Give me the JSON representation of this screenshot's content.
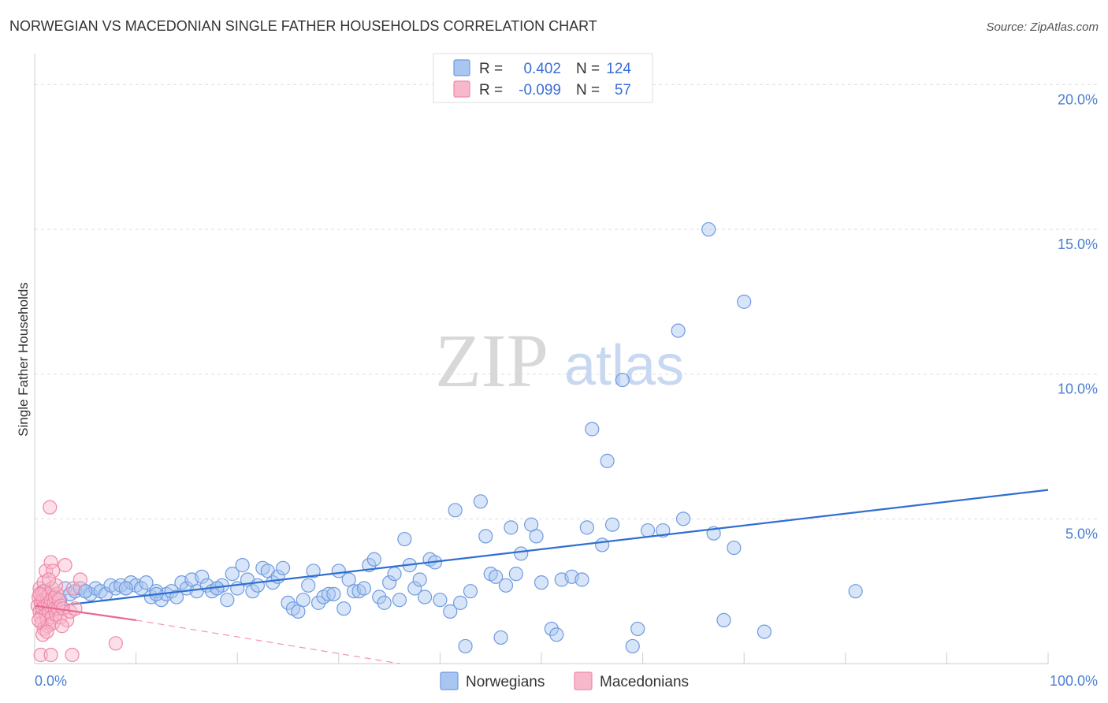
{
  "header": {
    "title": "NORWEGIAN VS MACEDONIAN SINGLE FATHER HOUSEHOLDS CORRELATION CHART",
    "source": "Source: ZipAtlas.com"
  },
  "watermark": {
    "zip": "ZIP",
    "atlas": "atlas"
  },
  "colors": {
    "blue_fill": "#a8c6f0",
    "blue_stroke": "#6f9be0",
    "blue_line": "#2f6fd0",
    "pink_fill": "#f8b8cc",
    "pink_stroke": "#ee88a8",
    "pink_line": "#e86890",
    "grid": "#dddddd",
    "tick_text": "#4a7fd0"
  },
  "legend": {
    "rows": [
      {
        "r_label": "R =",
        "r_value": "0.402",
        "n_label": "N =",
        "n_value": "124",
        "series": "blue"
      },
      {
        "r_label": "R =",
        "r_value": "-0.099",
        "n_label": "N =",
        "n_value": "57",
        "series": "pink"
      }
    ]
  },
  "bottom_legend": {
    "items": [
      {
        "label": "Norwegians",
        "series": "blue"
      },
      {
        "label": "Macedonians",
        "series": "pink"
      }
    ]
  },
  "chart_data": {
    "type": "scatter",
    "title": "NORWEGIAN VS MACEDONIAN SINGLE FATHER HOUSEHOLDS CORRELATION CHART",
    "xlabel": "",
    "ylabel": "Single Father Households",
    "xlim": [
      0,
      100
    ],
    "ylim": [
      0,
      20.8
    ],
    "x_ticks": [
      {
        "value": 0,
        "label": "0.0%"
      },
      {
        "value": 100,
        "label": "100.0%"
      }
    ],
    "x_minor_ticks": [
      10,
      20,
      30,
      40,
      50,
      60,
      70,
      80,
      90,
      100
    ],
    "y_ticks": [
      {
        "value": 5,
        "label": "5.0%"
      },
      {
        "value": 10,
        "label": "10.0%"
      },
      {
        "value": 15,
        "label": "15.0%"
      },
      {
        "value": 20,
        "label": "20.0%"
      }
    ],
    "grid": true,
    "series": [
      {
        "name": "Norwegians",
        "color": "blue",
        "trend": {
          "x": [
            0,
            100
          ],
          "y": [
            1.9,
            6.0
          ],
          "style": "solid"
        },
        "points": [
          [
            0.8,
            2.5
          ],
          [
            1.5,
            2.4
          ],
          [
            2.0,
            2.3
          ],
          [
            2.5,
            2.2
          ],
          [
            3.0,
            2.6
          ],
          [
            3.5,
            2.4
          ],
          [
            4.0,
            2.5
          ],
          [
            4.5,
            2.6
          ],
          [
            5.0,
            2.5
          ],
          [
            5.5,
            2.4
          ],
          [
            6.0,
            2.6
          ],
          [
            6.5,
            2.5
          ],
          [
            7.0,
            2.4
          ],
          [
            7.5,
            2.7
          ],
          [
            8.0,
            2.6
          ],
          [
            8.5,
            2.7
          ],
          [
            9.0,
            2.6
          ],
          [
            9.5,
            2.8
          ],
          [
            10.0,
            2.7
          ],
          [
            10.5,
            2.6
          ],
          [
            11.0,
            2.8
          ],
          [
            11.5,
            2.3
          ],
          [
            12.0,
            2.5
          ],
          [
            12.5,
            2.2
          ],
          [
            13.0,
            2.4
          ],
          [
            13.5,
            2.5
          ],
          [
            14.0,
            2.3
          ],
          [
            14.5,
            2.8
          ],
          [
            15.0,
            2.6
          ],
          [
            15.5,
            2.9
          ],
          [
            16.0,
            2.5
          ],
          [
            16.5,
            3.0
          ],
          [
            17.0,
            2.7
          ],
          [
            17.5,
            2.5
          ],
          [
            18.0,
            2.6
          ],
          [
            18.5,
            2.7
          ],
          [
            19.0,
            2.2
          ],
          [
            19.5,
            3.1
          ],
          [
            20.0,
            2.6
          ],
          [
            20.5,
            3.4
          ],
          [
            21.0,
            2.9
          ],
          [
            21.5,
            2.5
          ],
          [
            22.0,
            2.7
          ],
          [
            22.5,
            3.3
          ],
          [
            23.0,
            3.2
          ],
          [
            23.5,
            2.8
          ],
          [
            24.0,
            3.0
          ],
          [
            24.5,
            3.3
          ],
          [
            25.0,
            2.1
          ],
          [
            25.5,
            1.9
          ],
          [
            26.0,
            1.8
          ],
          [
            26.5,
            2.2
          ],
          [
            27.0,
            2.7
          ],
          [
            27.5,
            3.2
          ],
          [
            28.0,
            2.1
          ],
          [
            28.5,
            2.3
          ],
          [
            29.0,
            2.4
          ],
          [
            29.5,
            2.4
          ],
          [
            30.0,
            3.2
          ],
          [
            30.5,
            1.9
          ],
          [
            31.0,
            2.9
          ],
          [
            31.5,
            2.5
          ],
          [
            32.0,
            2.5
          ],
          [
            32.5,
            2.6
          ],
          [
            33.0,
            3.4
          ],
          [
            33.5,
            3.6
          ],
          [
            34.0,
            2.3
          ],
          [
            34.5,
            2.1
          ],
          [
            35.0,
            2.8
          ],
          [
            35.5,
            3.1
          ],
          [
            36.0,
            2.2
          ],
          [
            36.5,
            4.3
          ],
          [
            37.0,
            3.4
          ],
          [
            37.5,
            2.6
          ],
          [
            38.0,
            2.9
          ],
          [
            38.5,
            2.3
          ],
          [
            39.0,
            3.6
          ],
          [
            39.5,
            3.5
          ],
          [
            40.0,
            2.2
          ],
          [
            41.0,
            1.8
          ],
          [
            41.5,
            5.3
          ],
          [
            42.0,
            2.1
          ],
          [
            42.5,
            0.6
          ],
          [
            43.0,
            2.5
          ],
          [
            44.0,
            5.6
          ],
          [
            44.5,
            4.4
          ],
          [
            45.0,
            3.1
          ],
          [
            45.5,
            3.0
          ],
          [
            46.0,
            0.9
          ],
          [
            46.5,
            2.7
          ],
          [
            47.0,
            4.7
          ],
          [
            47.5,
            3.1
          ],
          [
            48.0,
            3.8
          ],
          [
            49.0,
            4.8
          ],
          [
            49.5,
            4.4
          ],
          [
            50.0,
            2.8
          ],
          [
            51.0,
            1.2
          ],
          [
            51.5,
            1.0
          ],
          [
            52.0,
            2.9
          ],
          [
            53.0,
            3.0
          ],
          [
            54.0,
            2.9
          ],
          [
            54.5,
            4.7
          ],
          [
            55.0,
            8.1
          ],
          [
            56.0,
            4.1
          ],
          [
            56.5,
            7.0
          ],
          [
            57.0,
            4.8
          ],
          [
            58.0,
            9.8
          ],
          [
            59.0,
            0.6
          ],
          [
            59.5,
            1.2
          ],
          [
            60.5,
            4.6
          ],
          [
            62.0,
            4.6
          ],
          [
            63.5,
            11.5
          ],
          [
            64.0,
            5.0
          ],
          [
            66.5,
            15.0
          ],
          [
            67.0,
            4.5
          ],
          [
            68.0,
            1.5
          ],
          [
            69.0,
            4.0
          ],
          [
            70.0,
            12.5
          ],
          [
            72.0,
            1.1
          ],
          [
            81.0,
            2.5
          ],
          [
            5.0,
            2.5
          ],
          [
            9.0,
            2.6
          ],
          [
            12.0,
            2.4
          ],
          [
            18.0,
            2.6
          ]
        ]
      },
      {
        "name": "Macedonians",
        "color": "pink",
        "trend": {
          "x": [
            0,
            10.0
          ],
          "y": [
            2.0,
            1.5
          ],
          "style": "solid",
          "dashed_extension_to": [
            36.0,
            0.0
          ]
        },
        "points": [
          [
            0.3,
            2.0
          ],
          [
            0.4,
            2.3
          ],
          [
            0.5,
            1.8
          ],
          [
            0.5,
            2.6
          ],
          [
            0.6,
            2.1
          ],
          [
            0.6,
            1.6
          ],
          [
            0.7,
            2.4
          ],
          [
            0.7,
            1.4
          ],
          [
            0.8,
            2.2
          ],
          [
            0.8,
            1.9
          ],
          [
            0.9,
            2.8
          ],
          [
            0.9,
            1.2
          ],
          [
            1.0,
            2.0
          ],
          [
            1.0,
            2.5
          ],
          [
            1.1,
            1.7
          ],
          [
            1.1,
            3.2
          ],
          [
            1.2,
            2.3
          ],
          [
            1.2,
            1.5
          ],
          [
            1.3,
            2.1
          ],
          [
            1.3,
            1.3
          ],
          [
            1.4,
            2.4
          ],
          [
            1.4,
            1.8
          ],
          [
            1.5,
            5.4
          ],
          [
            1.5,
            2.0
          ],
          [
            1.6,
            3.5
          ],
          [
            1.6,
            2.2
          ],
          [
            1.7,
            1.6
          ],
          [
            1.7,
            2.6
          ],
          [
            1.8,
            3.2
          ],
          [
            1.8,
            1.4
          ],
          [
            1.9,
            2.1
          ],
          [
            2.0,
            1.9
          ],
          [
            2.0,
            2.3
          ],
          [
            2.1,
            1.7
          ],
          [
            2.2,
            2.4
          ],
          [
            2.3,
            1.9
          ],
          [
            2.4,
            2.2
          ],
          [
            2.5,
            1.6
          ],
          [
            2.6,
            2.0
          ],
          [
            2.8,
            1.9
          ],
          [
            3.0,
            3.4
          ],
          [
            3.2,
            1.5
          ],
          [
            3.5,
            1.8
          ],
          [
            3.8,
            2.6
          ],
          [
            4.0,
            1.9
          ],
          [
            4.5,
            2.9
          ],
          [
            0.6,
            0.3
          ],
          [
            1.6,
            0.3
          ],
          [
            3.7,
            0.3
          ],
          [
            8.0,
            0.7
          ],
          [
            0.4,
            1.5
          ],
          [
            0.8,
            1.0
          ],
          [
            1.2,
            1.1
          ],
          [
            2.1,
            2.7
          ],
          [
            2.7,
            1.3
          ],
          [
            1.4,
            2.9
          ],
          [
            0.5,
            2.4
          ]
        ]
      }
    ]
  }
}
